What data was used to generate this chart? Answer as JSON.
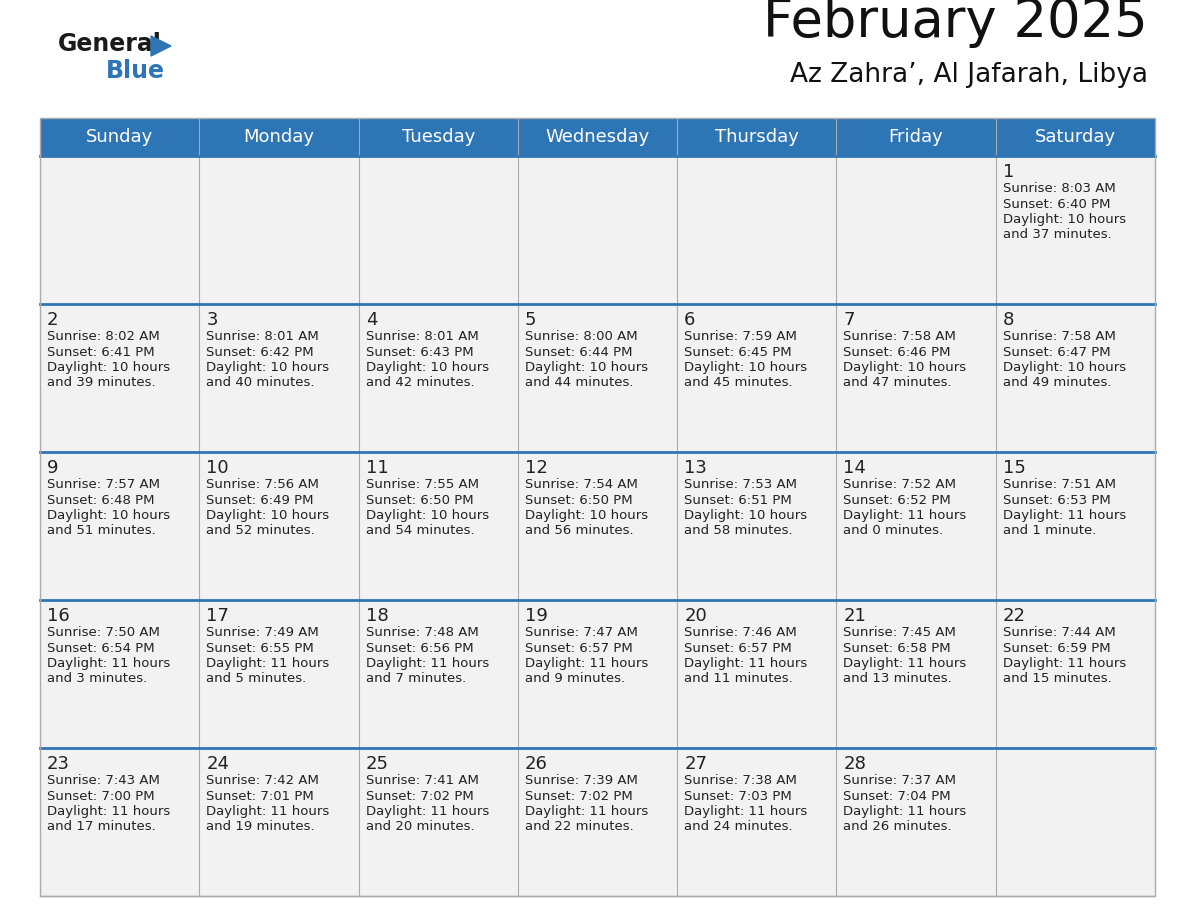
{
  "title": "February 2025",
  "subtitle": "Az Zahra’, Al Jafarah, Libya",
  "header_color": "#2E75B6",
  "header_text_color": "#FFFFFF",
  "cell_bg_color": "#F2F2F2",
  "separator_color": "#2E75B6",
  "grid_line_color": "#AAAAAA",
  "text_color": "#222222",
  "days_of_week": [
    "Sunday",
    "Monday",
    "Tuesday",
    "Wednesday",
    "Thursday",
    "Friday",
    "Saturday"
  ],
  "weeks": [
    [
      {
        "day": null,
        "sunrise": null,
        "sunset": null,
        "daylight": null
      },
      {
        "day": null,
        "sunrise": null,
        "sunset": null,
        "daylight": null
      },
      {
        "day": null,
        "sunrise": null,
        "sunset": null,
        "daylight": null
      },
      {
        "day": null,
        "sunrise": null,
        "sunset": null,
        "daylight": null
      },
      {
        "day": null,
        "sunrise": null,
        "sunset": null,
        "daylight": null
      },
      {
        "day": null,
        "sunrise": null,
        "sunset": null,
        "daylight": null
      },
      {
        "day": 1,
        "sunrise": "8:03 AM",
        "sunset": "6:40 PM",
        "daylight": "10 hours\nand 37 minutes."
      }
    ],
    [
      {
        "day": 2,
        "sunrise": "8:02 AM",
        "sunset": "6:41 PM",
        "daylight": "10 hours\nand 39 minutes."
      },
      {
        "day": 3,
        "sunrise": "8:01 AM",
        "sunset": "6:42 PM",
        "daylight": "10 hours\nand 40 minutes."
      },
      {
        "day": 4,
        "sunrise": "8:01 AM",
        "sunset": "6:43 PM",
        "daylight": "10 hours\nand 42 minutes."
      },
      {
        "day": 5,
        "sunrise": "8:00 AM",
        "sunset": "6:44 PM",
        "daylight": "10 hours\nand 44 minutes."
      },
      {
        "day": 6,
        "sunrise": "7:59 AM",
        "sunset": "6:45 PM",
        "daylight": "10 hours\nand 45 minutes."
      },
      {
        "day": 7,
        "sunrise": "7:58 AM",
        "sunset": "6:46 PM",
        "daylight": "10 hours\nand 47 minutes."
      },
      {
        "day": 8,
        "sunrise": "7:58 AM",
        "sunset": "6:47 PM",
        "daylight": "10 hours\nand 49 minutes."
      }
    ],
    [
      {
        "day": 9,
        "sunrise": "7:57 AM",
        "sunset": "6:48 PM",
        "daylight": "10 hours\nand 51 minutes."
      },
      {
        "day": 10,
        "sunrise": "7:56 AM",
        "sunset": "6:49 PM",
        "daylight": "10 hours\nand 52 minutes."
      },
      {
        "day": 11,
        "sunrise": "7:55 AM",
        "sunset": "6:50 PM",
        "daylight": "10 hours\nand 54 minutes."
      },
      {
        "day": 12,
        "sunrise": "7:54 AM",
        "sunset": "6:50 PM",
        "daylight": "10 hours\nand 56 minutes."
      },
      {
        "day": 13,
        "sunrise": "7:53 AM",
        "sunset": "6:51 PM",
        "daylight": "10 hours\nand 58 minutes."
      },
      {
        "day": 14,
        "sunrise": "7:52 AM",
        "sunset": "6:52 PM",
        "daylight": "11 hours\nand 0 minutes."
      },
      {
        "day": 15,
        "sunrise": "7:51 AM",
        "sunset": "6:53 PM",
        "daylight": "11 hours\nand 1 minute."
      }
    ],
    [
      {
        "day": 16,
        "sunrise": "7:50 AM",
        "sunset": "6:54 PM",
        "daylight": "11 hours\nand 3 minutes."
      },
      {
        "day": 17,
        "sunrise": "7:49 AM",
        "sunset": "6:55 PM",
        "daylight": "11 hours\nand 5 minutes."
      },
      {
        "day": 18,
        "sunrise": "7:48 AM",
        "sunset": "6:56 PM",
        "daylight": "11 hours\nand 7 minutes."
      },
      {
        "day": 19,
        "sunrise": "7:47 AM",
        "sunset": "6:57 PM",
        "daylight": "11 hours\nand 9 minutes."
      },
      {
        "day": 20,
        "sunrise": "7:46 AM",
        "sunset": "6:57 PM",
        "daylight": "11 hours\nand 11 minutes."
      },
      {
        "day": 21,
        "sunrise": "7:45 AM",
        "sunset": "6:58 PM",
        "daylight": "11 hours\nand 13 minutes."
      },
      {
        "day": 22,
        "sunrise": "7:44 AM",
        "sunset": "6:59 PM",
        "daylight": "11 hours\nand 15 minutes."
      }
    ],
    [
      {
        "day": 23,
        "sunrise": "7:43 AM",
        "sunset": "7:00 PM",
        "daylight": "11 hours\nand 17 minutes."
      },
      {
        "day": 24,
        "sunrise": "7:42 AM",
        "sunset": "7:01 PM",
        "daylight": "11 hours\nand 19 minutes."
      },
      {
        "day": 25,
        "sunrise": "7:41 AM",
        "sunset": "7:02 PM",
        "daylight": "11 hours\nand 20 minutes."
      },
      {
        "day": 26,
        "sunrise": "7:39 AM",
        "sunset": "7:02 PM",
        "daylight": "11 hours\nand 22 minutes."
      },
      {
        "day": 27,
        "sunrise": "7:38 AM",
        "sunset": "7:03 PM",
        "daylight": "11 hours\nand 24 minutes."
      },
      {
        "day": 28,
        "sunrise": "7:37 AM",
        "sunset": "7:04 PM",
        "daylight": "11 hours\nand 26 minutes."
      },
      {
        "day": null,
        "sunrise": null,
        "sunset": null,
        "daylight": null
      }
    ]
  ],
  "logo_general_color": "#1a1a1a",
  "logo_blue_color": "#2E75B6",
  "logo_triangle_color": "#2E75B6"
}
